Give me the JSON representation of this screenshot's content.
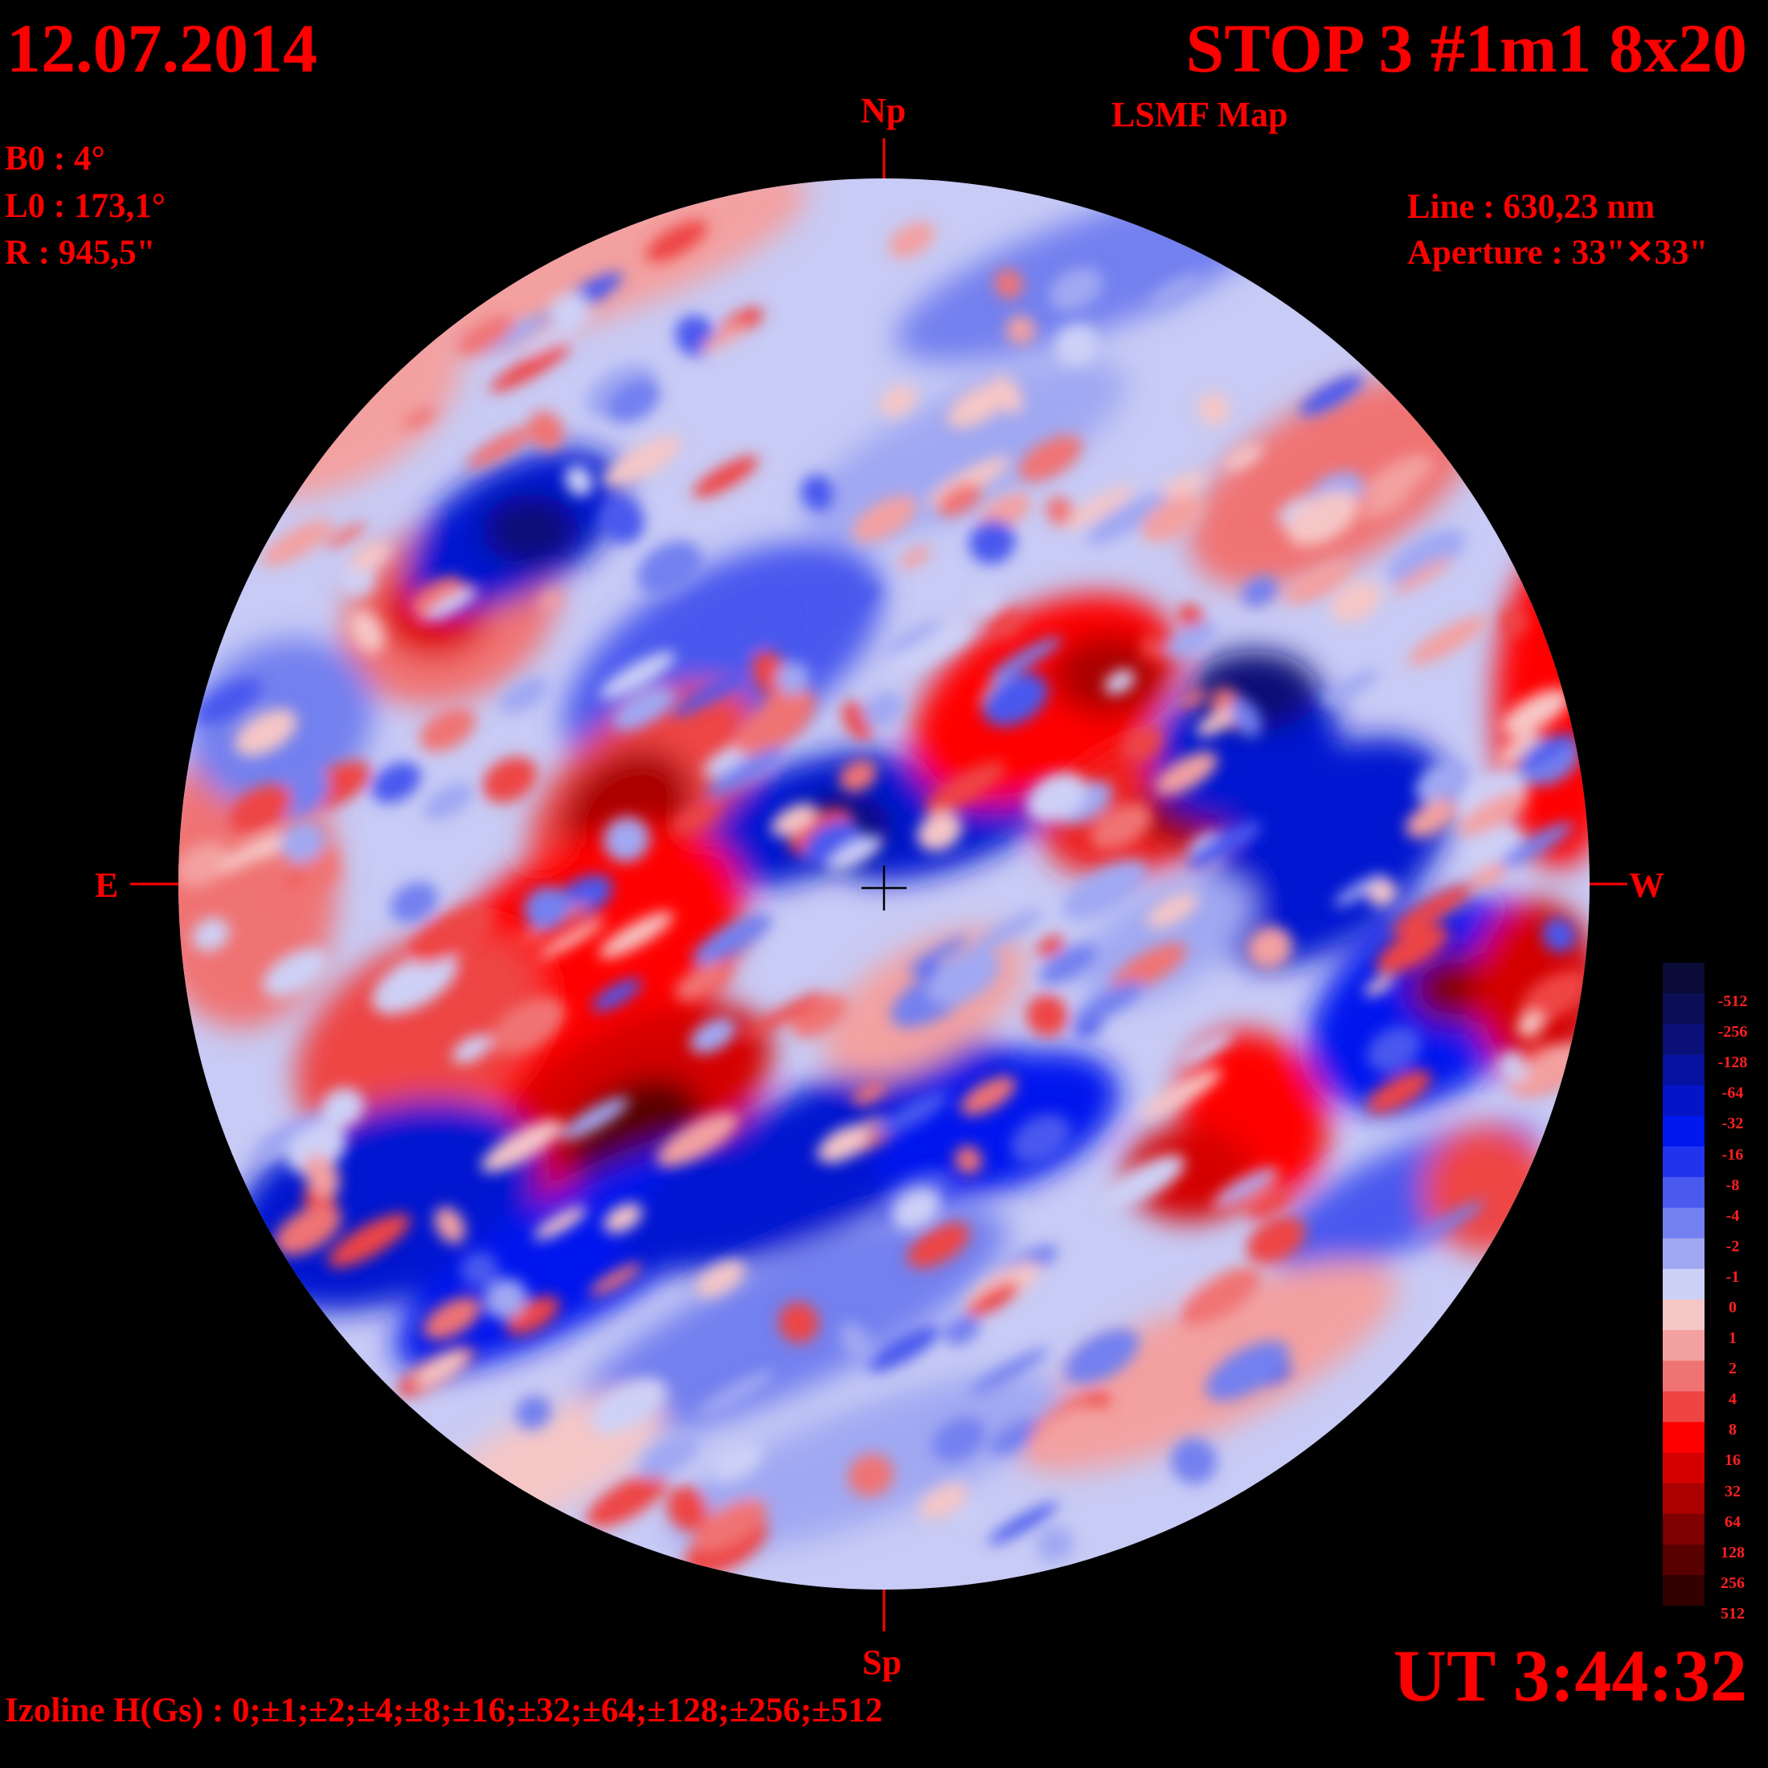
{
  "header": {
    "date": "12.07.2014",
    "title": "STOP 3 #1m1 8x20",
    "subtitle": "LSMF  Map",
    "b0": "B0 : 4°",
    "l0": "L0 : 173,1°",
    "radius": "R  : 945,5\"",
    "line": "Line :  630,23 nm",
    "aperture": "Aperture : 33\"✕33\""
  },
  "directions": {
    "north": "Np",
    "south": "Sp",
    "east": "E",
    "west": "W"
  },
  "footer": {
    "time": "UT 3:44:32",
    "izoline": "Izoline H(Gs) : 0;±1;±2;±4;±8;±16;±32;±64;±128;±256;±512"
  },
  "colorbar": {
    "levels": [
      {
        "label": "-512",
        "color": "#0a0b36"
      },
      {
        "label": "-256",
        "color": "#0b0e55"
      },
      {
        "label": "-128",
        "color": "#0a1077"
      },
      {
        "label": "-64",
        "color": "#0812a0"
      },
      {
        "label": "-32",
        "color": "#0614c8"
      },
      {
        "label": "-16",
        "color": "#0018ee"
      },
      {
        "label": "-8",
        "color": "#2233ee"
      },
      {
        "label": "-4",
        "color": "#4a59ee"
      },
      {
        "label": "-2",
        "color": "#7380ef"
      },
      {
        "label": "-1",
        "color": "#a0a8f2"
      },
      {
        "label": "0",
        "color": "#cdd0f6"
      },
      {
        "label": "1",
        "color": "#f5c6c6"
      },
      {
        "label": "2",
        "color": "#f3a0a0"
      },
      {
        "label": "4",
        "color": "#f07373"
      },
      {
        "label": "8",
        "color": "#ee4444"
      },
      {
        "label": "16",
        "color": "#ff0000"
      },
      {
        "label": "32",
        "color": "#d40000"
      },
      {
        "label": "64",
        "color": "#aa0000"
      },
      {
        "label": "128",
        "color": "#7e0000"
      },
      {
        "label": "256",
        "color": "#580000"
      },
      {
        "label": "512",
        "color": "#330000"
      }
    ]
  },
  "colors": {
    "text": "#ff0000",
    "background": "#000000",
    "crosshair": "#000000"
  }
}
